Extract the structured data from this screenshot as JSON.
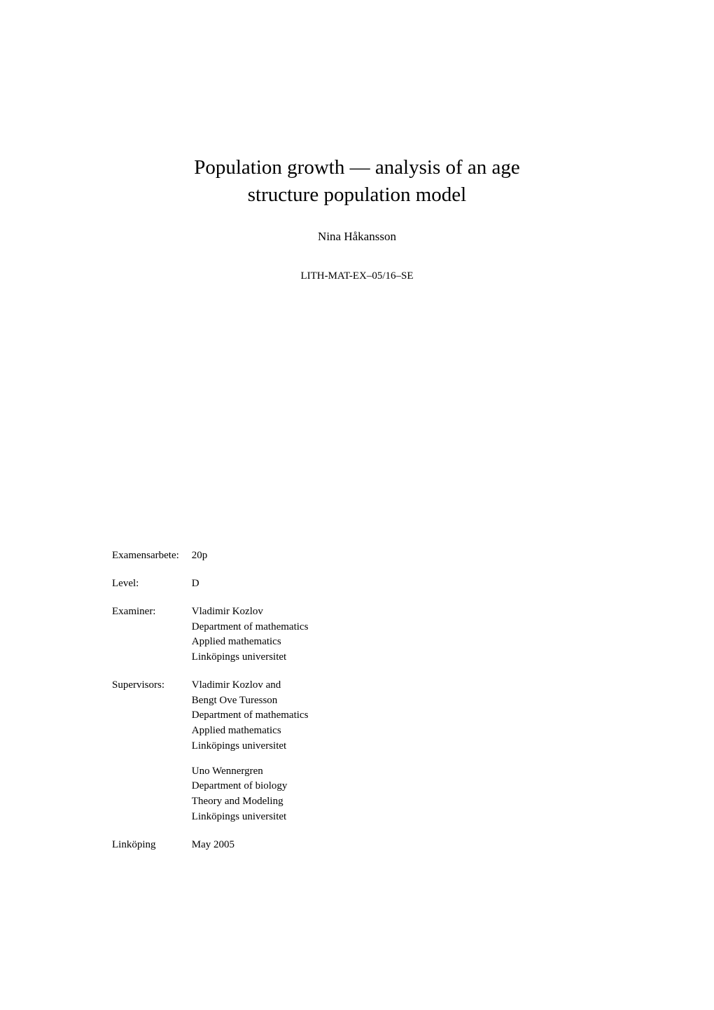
{
  "title": {
    "line1": "Population growth — analysis of an age",
    "line2": "structure population model"
  },
  "author": "Nina Håkansson",
  "report_id": "LITH-MAT-EX–05/16–SE",
  "meta": {
    "examensarbete": {
      "label": "Examensarbete:",
      "value": "20p"
    },
    "level": {
      "label": "Level:",
      "value": "D"
    },
    "examiner": {
      "label": "Examiner:",
      "lines": [
        "Vladimir Kozlov",
        "Department of mathematics",
        "Applied mathematics",
        "Linköpings universitet"
      ]
    },
    "supervisors": {
      "label": "Supervisors:",
      "block1": [
        "Vladimir Kozlov and",
        "Bengt Ove Turesson",
        "Department of mathematics",
        "Applied mathematics",
        "Linköpings universitet"
      ],
      "block2": [
        "Uno Wennergren",
        "Department of biology",
        "Theory and Modeling",
        "Linköpings universitet"
      ]
    },
    "location": {
      "label": "Linköping",
      "value": "May 2005"
    }
  },
  "styling": {
    "background_color": "#ffffff",
    "text_color": "#000000",
    "title_fontsize": 29,
    "author_fontsize": 17,
    "report_id_fontsize": 15,
    "meta_fontsize": 15,
    "font_family": "Computer Modern serif"
  }
}
